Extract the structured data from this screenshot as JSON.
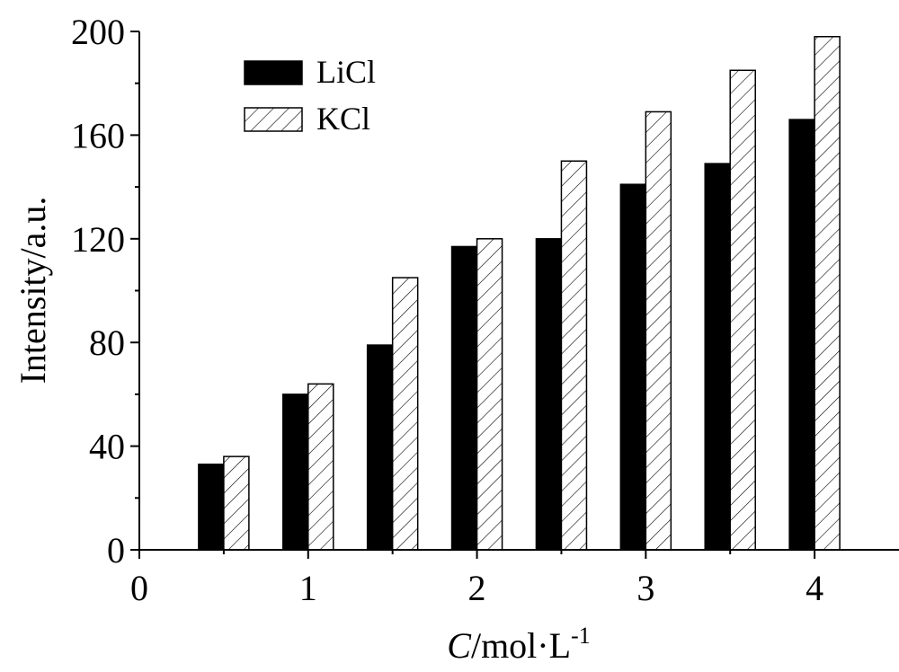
{
  "chart_data": {
    "type": "bar",
    "xlabel": "C/mol·L",
    "xlabel_italic_part": "C",
    "xlabel_superscript": "-1",
    "ylabel": "Intensity/a.u.",
    "xlim": [
      0,
      4.5
    ],
    "ylim": [
      0,
      200
    ],
    "xticks": [
      0,
      1,
      2,
      3,
      4
    ],
    "xtick_labels": [
      "0",
      "1",
      "2",
      "3",
      "4"
    ],
    "yticks": [
      0,
      40,
      80,
      120,
      160,
      200
    ],
    "ytick_labels": [
      "0",
      "40",
      "80",
      "120",
      "160",
      "200"
    ],
    "x": [
      0.5,
      1,
      1.5,
      2,
      2.5,
      3,
      3.5,
      4
    ],
    "legend_position": "top-left",
    "series": [
      {
        "name": "LiCl",
        "fill": "#000000",
        "pattern": "solid",
        "values": [
          33,
          60,
          79,
          117,
          120,
          141,
          149,
          166
        ]
      },
      {
        "name": "KCl",
        "fill": "#ffffff",
        "pattern": "hatched",
        "values": [
          36,
          64,
          105,
          120,
          150,
          169,
          185,
          198
        ]
      }
    ]
  }
}
